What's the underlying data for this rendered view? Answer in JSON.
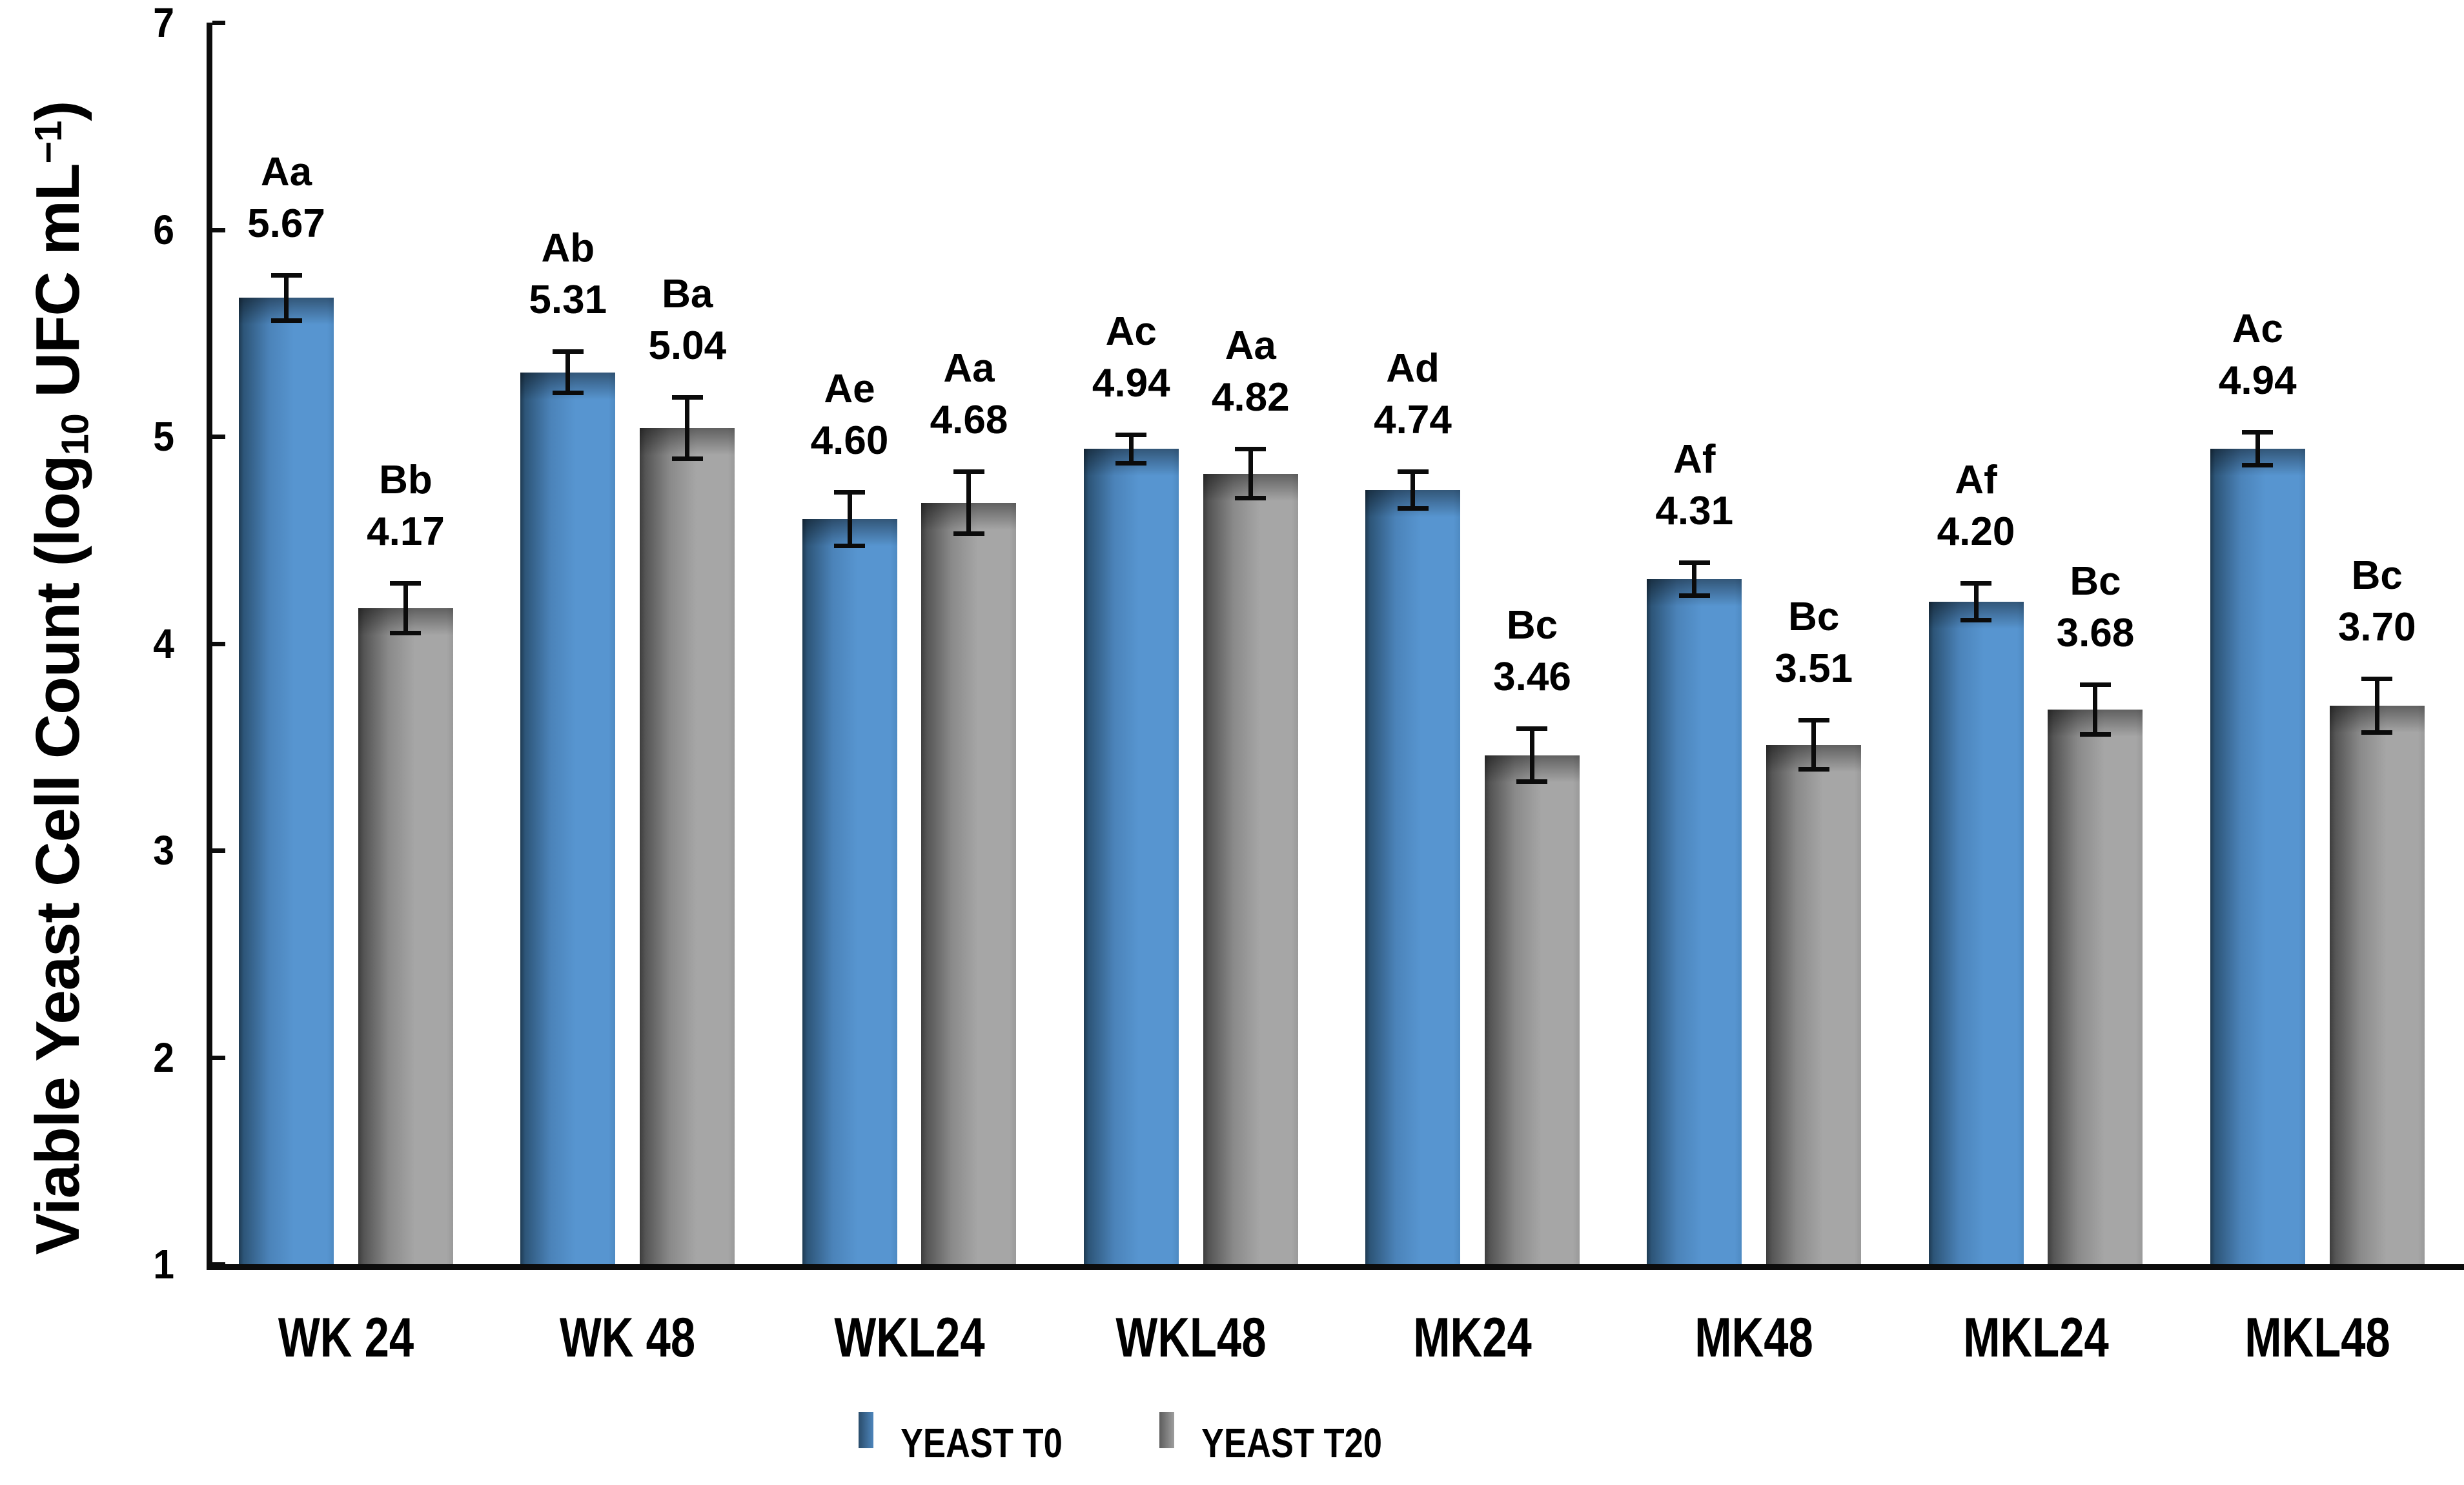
{
  "chart_data": {
    "type": "bar",
    "title": "",
    "xlabel": "",
    "ylabel": "Viable Yeast Cell Count (log10 UFC mL-1)",
    "y_title_parts": {
      "pre": "Viable Yeast Cell Count (log",
      "sub": "10",
      "mid": " UFC mL",
      "sup": "−1",
      "post": ")"
    },
    "categories": [
      "WK 24",
      "WK 48",
      "WKL24",
      "WKL48",
      "MK24",
      "MK48",
      "MKL24",
      "MKL48"
    ],
    "series": [
      {
        "name": "YEAST T0",
        "color": "#5795D0",
        "color_dark": "#24415C",
        "values": [
          5.67,
          5.31,
          4.6,
          4.94,
          4.74,
          4.31,
          4.2,
          4.94
        ],
        "errors": [
          0.12,
          0.11,
          0.14,
          0.08,
          0.1,
          0.09,
          0.1,
          0.09
        ],
        "letters": [
          "Aa",
          "Ab",
          "Ae",
          "Ac",
          "Ad",
          "Af",
          "Af",
          "Ac"
        ]
      },
      {
        "name": "YEAST T20",
        "color": "#A6A6A6",
        "color_dark": "#4A4A4A",
        "values": [
          4.17,
          5.04,
          4.68,
          4.82,
          3.46,
          3.51,
          3.68,
          3.7
        ],
        "errors": [
          0.13,
          0.16,
          0.16,
          0.13,
          0.14,
          0.13,
          0.13,
          0.14
        ],
        "letters": [
          "Bb",
          "Ba",
          "Aa",
          "Aa",
          "Bc",
          "Bc",
          "Bc",
          "Bc"
        ]
      }
    ],
    "ylim": [
      1,
      7
    ],
    "yticks": [
      1,
      2,
      3,
      4,
      5,
      6,
      7
    ],
    "grid": false,
    "legend_position": "bottom",
    "error_bars": true
  }
}
